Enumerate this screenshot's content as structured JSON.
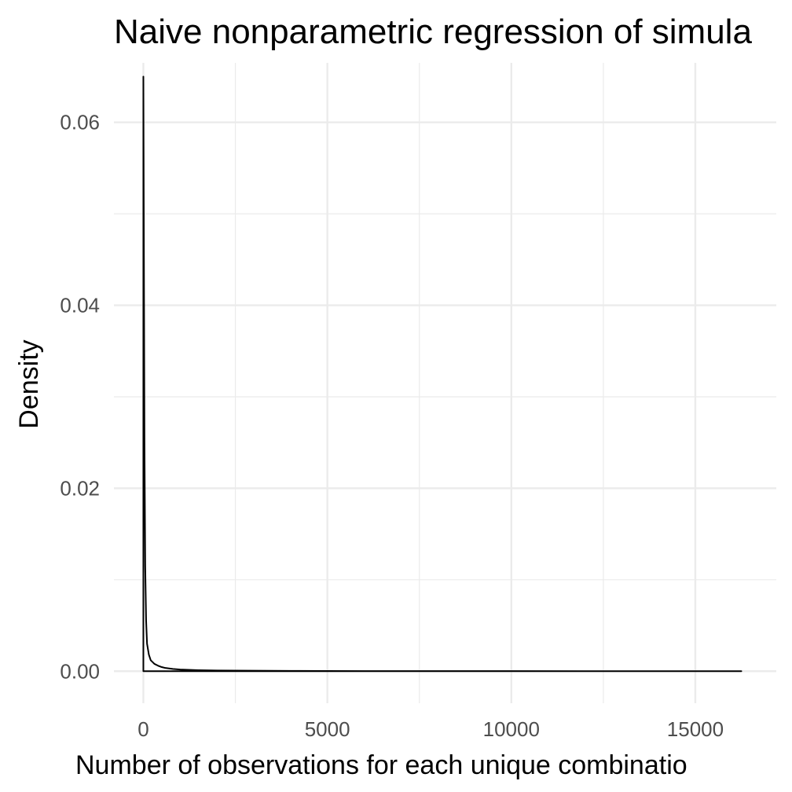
{
  "chart_data": {
    "type": "area",
    "title": "Naive nonparametric regression of simula",
    "xlabel": "Number of observations for each unique combinatio",
    "ylabel": "Density",
    "xlim": [
      -800,
      17200
    ],
    "ylim": [
      -0.0035,
      0.0665
    ],
    "x_ticks": [
      0,
      5000,
      10000,
      15000
    ],
    "x_tick_labels": [
      "0",
      "5000",
      "10000",
      "15000"
    ],
    "y_ticks": [
      0,
      0.02,
      0.04,
      0.06
    ],
    "y_tick_labels": [
      "0.00",
      "0.02",
      "0.04",
      "0.06"
    ],
    "grid": true,
    "legend": "none",
    "series": [
      {
        "x": [
          0,
          15,
          30,
          50,
          75,
          100,
          150,
          200,
          300,
          400,
          500,
          600,
          800,
          1000,
          1500,
          2000,
          3000,
          4000,
          5000,
          6000,
          8000,
          10000,
          12000,
          14000,
          16250
        ],
        "y": [
          0.065,
          0.045,
          0.025,
          0.0115,
          0.0055,
          0.003,
          0.0018,
          0.0012,
          0.0008,
          0.0006,
          0.00045,
          0.00035,
          0.00025,
          0.00018,
          0.00011,
          8e-05,
          5e-05,
          3e-05,
          2e-05,
          1.5e-05,
          1e-05,
          6e-06,
          4e-06,
          3e-06,
          0.0
        ]
      }
    ]
  }
}
